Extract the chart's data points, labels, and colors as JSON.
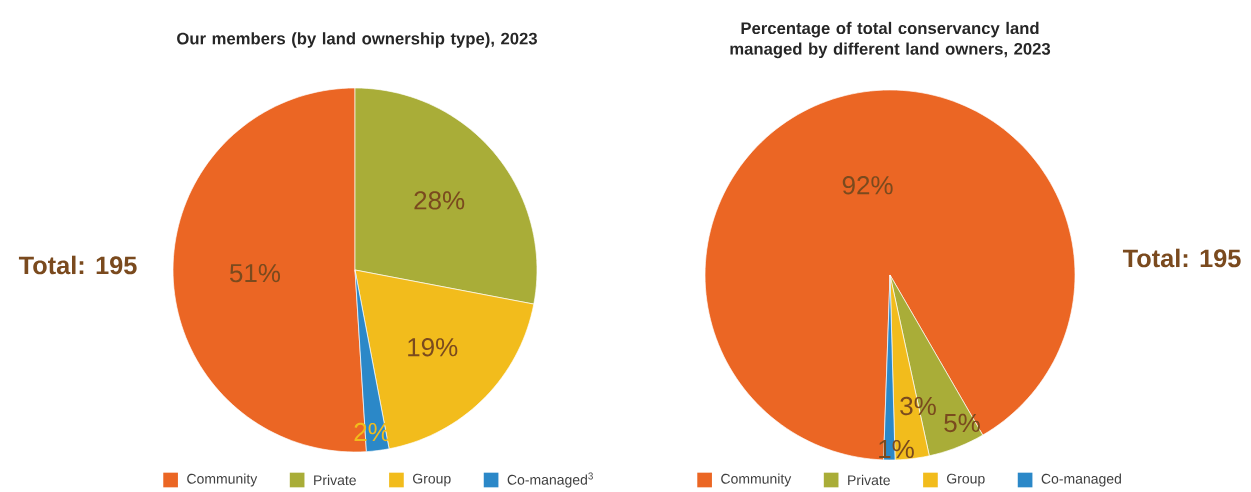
{
  "chart_data": [
    {
      "type": "pie",
      "title": "Our members (by land ownership type), 2023",
      "categories": [
        "Community",
        "Private",
        "Group",
        "Co-managed$^{3}$"
      ],
      "values": [
        51,
        28,
        19,
        2
      ],
      "colors": [
        "#eb6624",
        "#a9ad38",
        "#f2bc1c",
        "#2b88c8"
      ],
      "value_labels": [
        "51%",
        "28%",
        "19%",
        "2%"
      ],
      "annotations": [
        "Total: 195"
      ],
      "legend": "bottom"
    },
    {
      "type": "pie",
      "title": "Percentage of total conservancy land managed by different land owners, 2023",
      "categories": [
        "Community",
        "Private",
        "Group",
        "Co-managed"
      ],
      "values": [
        92,
        5,
        3,
        1
      ],
      "colors": [
        "#eb6624",
        "#a9ad38",
        "#f2bc1c",
        "#2b88c8"
      ],
      "value_labels": [
        "92%",
        "5%",
        "3%",
        "1%"
      ],
      "annotations": [
        "Total: 195"
      ],
      "legend": "bottom"
    }
  ]
}
